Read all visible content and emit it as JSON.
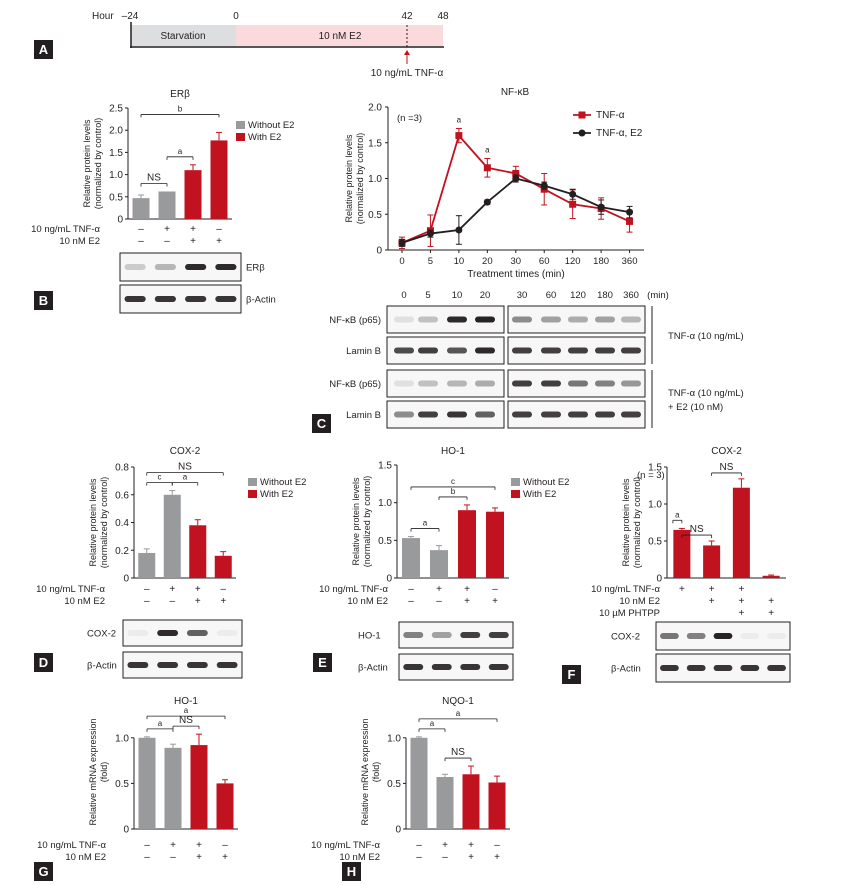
{
  "colors": {
    "gray": "#999a9c",
    "red": "#c1121f",
    "dark": "#231f20",
    "pink": "#fadadd",
    "starve": "#dcdee0"
  },
  "panels": {
    "A": "A",
    "B": "B",
    "C": "C",
    "D": "D",
    "E": "E",
    "F": "F",
    "G": "G",
    "H": "H"
  },
  "timeline": {
    "axis_label": "Hour",
    "ticks": [
      "–24",
      "0",
      "42",
      "48"
    ],
    "starvation": "Starvation",
    "treatment": "10 nM E2",
    "tnf": "10 ng/mL TNF-α"
  },
  "chart_data": [
    {
      "id": "B",
      "type": "bar",
      "title": "ERβ",
      "ylabel": [
        "Relative protein levels",
        "(normalized by control)"
      ],
      "ylim": [
        0,
        2.5
      ],
      "yticks": [
        "0",
        "0.5",
        "1.0",
        "1.5",
        "2.0",
        "2.5"
      ],
      "values": [
        0.47,
        0.62,
        1.1,
        1.77
      ],
      "errors": [
        0.07,
        0,
        0.12,
        0.18
      ],
      "colors": [
        "gray",
        "gray",
        "red",
        "red"
      ],
      "legend": [
        "Without E2",
        "With E2"
      ],
      "brackets": [
        {
          "from": 0,
          "to": 1,
          "label": "NS"
        },
        {
          "from": 1,
          "to": 2,
          "label": "a"
        },
        {
          "from": 0,
          "to": 3,
          "label": "b"
        }
      ],
      "conditions": [
        {
          "label": "10 ng/mL TNF-α",
          "marks": [
            "–",
            "+",
            "+",
            "–"
          ]
        },
        {
          "label": "10 nM E2",
          "marks": [
            "–",
            "–",
            "+",
            "+"
          ]
        }
      ],
      "blots": [
        {
          "label": "ERβ",
          "bands": [
            0.2,
            0.3,
            0.95,
            0.95
          ]
        },
        {
          "label": "β-Actin",
          "bands": [
            0.9,
            0.9,
            0.9,
            0.9
          ]
        }
      ]
    },
    {
      "id": "C",
      "type": "line",
      "title": "NF-κB",
      "note": "(n =3)",
      "ylabel": [
        "Relative protein levels",
        "(normalized by control)"
      ],
      "xlabel": "Treatment times (min)",
      "categories": [
        "0",
        "5",
        "10",
        "20",
        "30",
        "60",
        "120",
        "180",
        "360"
      ],
      "ylim": [
        0,
        2.0
      ],
      "yticks": [
        "0",
        "0.5",
        "1.0",
        "1.5",
        "2.0"
      ],
      "series": [
        {
          "name": "TNF-α",
          "color": "red",
          "marker": "square",
          "values": [
            0.1,
            0.27,
            1.6,
            1.15,
            1.07,
            0.85,
            0.64,
            0.58,
            0.4
          ],
          "errors": [
            0.08,
            0.22,
            0.1,
            0.13,
            0.1,
            0.22,
            0.2,
            0.15,
            0.15
          ]
        },
        {
          "name": "TNF-α, E2",
          "color": "dark",
          "marker": "circle",
          "values": [
            0.1,
            0.23,
            0.28,
            0.67,
            1.0,
            0.9,
            0.78,
            0.6,
            0.53
          ],
          "errors": [
            0.05,
            0.05,
            0.2,
            0.03,
            0.05,
            0.05,
            0.07,
            0.1,
            0.08
          ]
        }
      ],
      "annotations": [
        {
          "at": 2,
          "label": "a"
        },
        {
          "at": 3,
          "label": "a"
        }
      ],
      "blot_times": [
        "0",
        "5",
        "10",
        "20",
        "30",
        "60",
        "120",
        "180",
        "360"
      ],
      "blot_unit": "(min)",
      "blot_sets": [
        {
          "side": "TNF-α (10 ng/mL)",
          "rows": [
            {
              "label": "NF-κB (p65)",
              "bands": [
                0.1,
                0.25,
                0.95,
                0.98,
                0.5,
                0.4,
                0.35,
                0.4,
                0.3
              ]
            },
            {
              "label": "Lamin B",
              "bands": [
                0.8,
                0.85,
                0.75,
                0.95,
                0.85,
                0.85,
                0.85,
                0.85,
                0.85
              ]
            }
          ]
        },
        {
          "side": "TNF-α (10 ng/mL)",
          "side2": "+ E2 (10 nM)",
          "rows": [
            {
              "label": "NF-κB (p65)",
              "bands": [
                0.1,
                0.25,
                0.3,
                0.35,
                0.85,
                0.85,
                0.6,
                0.55,
                0.45
              ]
            },
            {
              "label": "Lamin B",
              "bands": [
                0.5,
                0.85,
                0.9,
                0.7,
                0.85,
                0.85,
                0.85,
                0.85,
                0.85
              ]
            }
          ]
        }
      ]
    },
    {
      "id": "D",
      "type": "bar",
      "title": "COX-2",
      "ylabel": [
        "Relative protein levels",
        "(normalized by control)"
      ],
      "ylim": [
        0,
        0.8
      ],
      "yticks": [
        "0",
        "0.2",
        "0.4",
        "0.6",
        "0.8"
      ],
      "values": [
        0.18,
        0.6,
        0.38,
        0.16
      ],
      "errors": [
        0.03,
        0.03,
        0.04,
        0.03
      ],
      "colors": [
        "gray",
        "gray",
        "red",
        "red"
      ],
      "legend": [
        "Without  E2",
        "With E2"
      ],
      "brackets": [
        {
          "from": 0,
          "to": 1,
          "label": "c"
        },
        {
          "from": 1,
          "to": 2,
          "label": "a"
        },
        {
          "from": 0,
          "to": 3,
          "label": "NS"
        }
      ],
      "conditions": [
        {
          "label": "10 ng/mL TNF-α",
          "marks": [
            "–",
            "+",
            "+",
            "–"
          ]
        },
        {
          "label": "10 nM E2",
          "marks": [
            "–",
            "–",
            "+",
            "+"
          ]
        }
      ],
      "blots": [
        {
          "label": "COX-2",
          "bands": [
            0.05,
            0.95,
            0.7,
            0.05
          ]
        },
        {
          "label": "β-Actin",
          "bands": [
            0.9,
            0.9,
            0.9,
            0.9
          ]
        }
      ]
    },
    {
      "id": "E",
      "type": "bar",
      "title": "HO-1",
      "ylabel": [
        "Relative protein levels",
        "(normalized by control)"
      ],
      "ylim": [
        0,
        1.5
      ],
      "yticks": [
        "0",
        "0.5",
        "1.0",
        "1.5"
      ],
      "values": [
        0.53,
        0.37,
        0.9,
        0.88
      ],
      "errors": [
        0.02,
        0.06,
        0.07,
        0.05
      ],
      "colors": [
        "gray",
        "gray",
        "red",
        "red"
      ],
      "legend": [
        "Without  E2",
        "With E2"
      ],
      "brackets": [
        {
          "from": 0,
          "to": 1,
          "label": "a"
        },
        {
          "from": 1,
          "to": 2,
          "label": "b"
        },
        {
          "from": 0,
          "to": 3,
          "label": "c"
        }
      ],
      "conditions": [
        {
          "label": "10 ng/mL TNF-α",
          "marks": [
            "–",
            "+",
            "+",
            "–"
          ]
        },
        {
          "label": "10 nM E2",
          "marks": [
            "–",
            "–",
            "+",
            "+"
          ]
        }
      ],
      "blots": [
        {
          "label": "HO-1",
          "bands": [
            0.55,
            0.4,
            0.85,
            0.85
          ]
        },
        {
          "label": "β-Actin",
          "bands": [
            0.9,
            0.9,
            0.9,
            0.9
          ]
        }
      ]
    },
    {
      "id": "F",
      "type": "bar",
      "title": "COX-2",
      "note": "(n = 3)",
      "ylabel": [
        "Relative protein levels",
        "(normalized by control)"
      ],
      "ylim": [
        0,
        1.5
      ],
      "yticks": [
        "0",
        "0.5",
        "1.0",
        "1.5"
      ],
      "values": [
        0.65,
        0.44,
        1.22,
        0.03
      ],
      "errors": [
        0.02,
        0.06,
        0.12,
        0.01
      ],
      "colors": [
        "red",
        "red",
        "red",
        "red"
      ],
      "brackets": [
        {
          "from": 0,
          "to": 0,
          "label": "a",
          "y": 0.78
        },
        {
          "from": 0,
          "to": 1,
          "label": "NS",
          "y": 0.58
        },
        {
          "from": 1,
          "to": 2,
          "label": "NS",
          "y": 1.42
        }
      ],
      "conditions": [
        {
          "label": "10 ng/mL TNF-α",
          "marks": [
            "+",
            "+",
            "+",
            ""
          ]
        },
        {
          "label": "10 nM E2",
          "marks": [
            "",
            "+",
            "+",
            "+"
          ]
        },
        {
          "label": "10 µM PHTPP",
          "marks": [
            "",
            "",
            "+",
            "+"
          ]
        }
      ],
      "blots": [
        {
          "label": "COX-2",
          "bands": [
            0.6,
            0.55,
            0.98,
            0.05,
            0.05
          ]
        },
        {
          "label": "β-Actin",
          "bands": [
            0.9,
            0.9,
            0.9,
            0.9,
            0.9
          ]
        }
      ]
    },
    {
      "id": "G",
      "type": "bar",
      "title": "HO-1",
      "ylabel": [
        "Relative mRNA expression",
        "(fold)"
      ],
      "ylim": [
        0,
        1.25
      ],
      "yticks": [
        "0",
        "0.5",
        "1.0"
      ],
      "values": [
        1.0,
        0.89,
        0.92,
        0.5
      ],
      "errors": [
        0.01,
        0.04,
        0.12,
        0.04
      ],
      "colors": [
        "gray",
        "gray",
        "red",
        "red"
      ],
      "brackets": [
        {
          "from": 0,
          "to": 1,
          "label": "a"
        },
        {
          "from": 1,
          "to": 2,
          "label": "NS"
        },
        {
          "from": 0,
          "to": 3,
          "label": "a"
        }
      ],
      "conditions": [
        {
          "label": "10 ng/mL TNF-α",
          "marks": [
            "–",
            "+",
            "+",
            "–"
          ]
        },
        {
          "label": "10 nM E2",
          "marks": [
            "–",
            "–",
            "+",
            "+"
          ]
        }
      ]
    },
    {
      "id": "H",
      "type": "bar",
      "title": "NQO-1",
      "ylabel": [
        "Relative mRNA expression",
        "(fold)"
      ],
      "ylim": [
        0,
        1.25
      ],
      "yticks": [
        "0",
        "0.5",
        "1.0"
      ],
      "values": [
        1.0,
        0.57,
        0.6,
        0.51
      ],
      "errors": [
        0.01,
        0.03,
        0.09,
        0.07
      ],
      "colors": [
        "gray",
        "gray",
        "red",
        "red"
      ],
      "brackets": [
        {
          "from": 0,
          "to": 1,
          "label": "a"
        },
        {
          "from": 1,
          "to": 2,
          "label": "NS"
        },
        {
          "from": 0,
          "to": 3,
          "label": "a"
        }
      ],
      "conditions": [
        {
          "label": "10 ng/mL TNF-α",
          "marks": [
            "–",
            "+",
            "+",
            "–"
          ]
        },
        {
          "label": "10 nM E2",
          "marks": [
            "–",
            "–",
            "+",
            "+"
          ]
        }
      ]
    }
  ]
}
